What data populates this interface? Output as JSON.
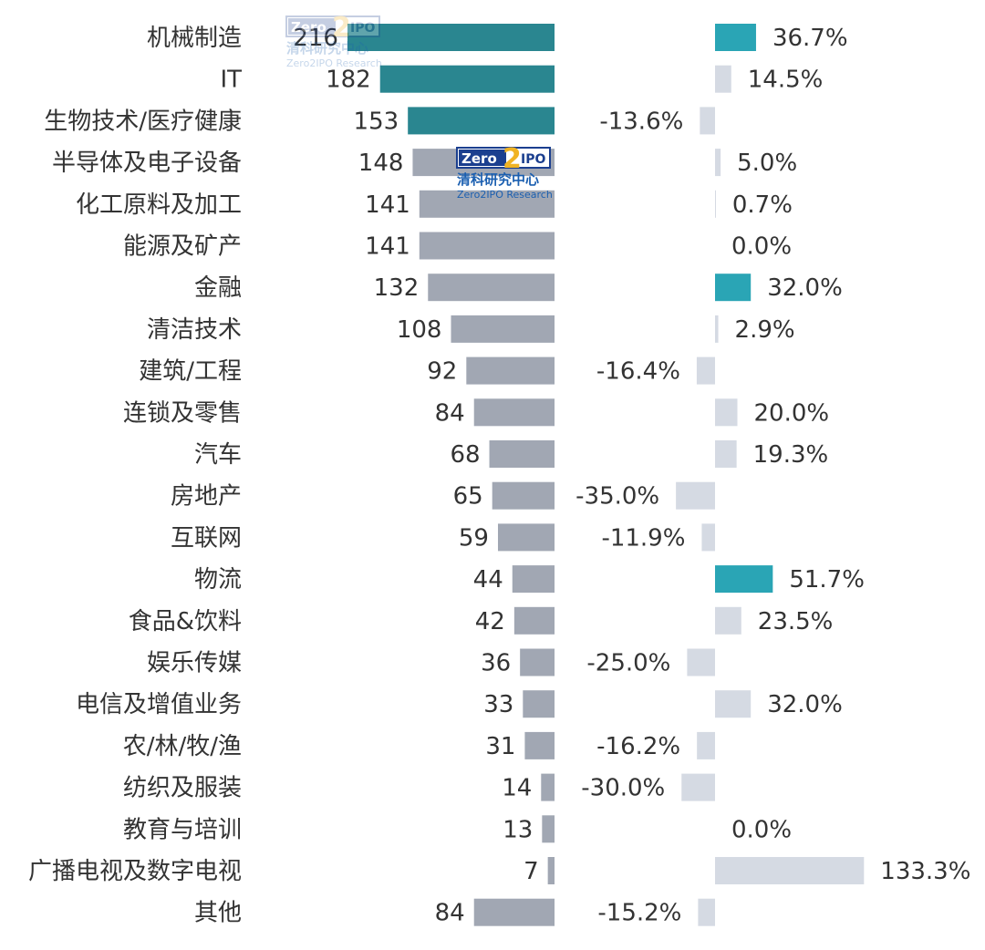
{
  "chart_data": {
    "type": "bar",
    "orientation": "horizontal",
    "categories": [
      "机械制造",
      "IT",
      "生物技术/医疗健康",
      "半导体及电子设备",
      "化工原料及加工",
      "能源及矿产",
      "金融",
      "清洁技术",
      "建筑/工程",
      "连锁及零售",
      "汽车",
      "房地产",
      "互联网",
      "物流",
      "食品&饮料",
      "娱乐传媒",
      "电信及增值业务",
      "农/林/牧/渔",
      "纺织及服装",
      "教育与培训",
      "广播电视及数字电视",
      "其他"
    ],
    "series": [
      {
        "values": [
          216,
          182,
          153,
          148,
          141,
          141,
          132,
          108,
          92,
          84,
          68,
          65,
          59,
          44,
          42,
          36,
          33,
          31,
          14,
          13,
          7,
          84
        ],
        "highlight": [
          true,
          true,
          true,
          false,
          false,
          false,
          false,
          false,
          false,
          false,
          false,
          false,
          false,
          false,
          false,
          false,
          false,
          false,
          false,
          false,
          false,
          false
        ]
      },
      {
        "unit": "%",
        "values": [
          36.7,
          14.5,
          -13.6,
          5.0,
          0.7,
          0.0,
          32.0,
          2.9,
          -16.4,
          20.0,
          19.3,
          -35.0,
          -11.9,
          51.7,
          23.5,
          -25.0,
          32.0,
          -16.2,
          -30.0,
          0.0,
          133.3,
          -15.2
        ],
        "labels": [
          "36.7%",
          "14.5%",
          "-13.6%",
          "5.0%",
          "0.7%",
          "0.0%",
          "32.0%",
          "2.9%",
          "-16.4%",
          "20.0%",
          "19.3%",
          "-35.0%",
          "-11.9%",
          "51.7%",
          "23.5%",
          "-25.0%",
          "32.0%",
          "-16.2%",
          "-30.0%",
          "0.0%",
          "133.3%",
          "-15.2%"
        ],
        "highlight": [
          true,
          false,
          false,
          false,
          false,
          false,
          true,
          false,
          false,
          false,
          false,
          false,
          false,
          true,
          false,
          false,
          false,
          false,
          false,
          false,
          false,
          false
        ]
      }
    ],
    "colors": {
      "left_highlight": "#2a8690",
      "left": "#a1a7b3",
      "right_highlight": "#2aa5b5",
      "right": "#d5dae3",
      "text": "#333333"
    },
    "grid": false,
    "legend": "none"
  },
  "logo": {
    "brand": "Zero2IPO",
    "cn": "清科研究中心",
    "en": "Zero2IPO Research"
  }
}
